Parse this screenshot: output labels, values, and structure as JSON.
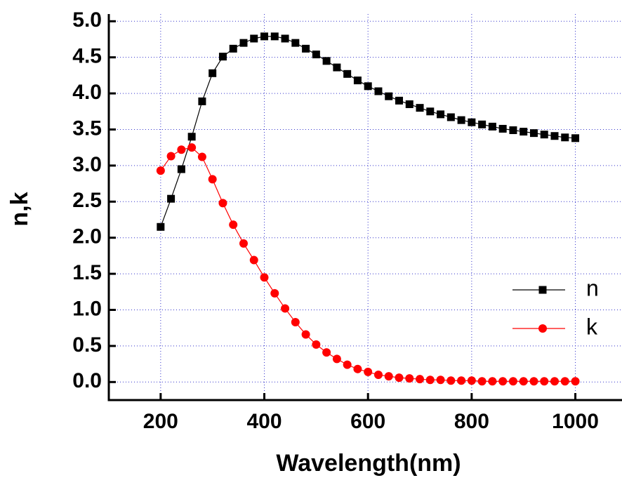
{
  "chart_data": {
    "type": "line",
    "x_label": "Wavelength(nm)",
    "y_label": "n,k",
    "x": [
      200,
      220,
      240,
      260,
      280,
      300,
      320,
      340,
      360,
      380,
      400,
      420,
      440,
      460,
      480,
      500,
      520,
      540,
      560,
      580,
      600,
      620,
      640,
      660,
      680,
      700,
      720,
      740,
      760,
      780,
      800,
      820,
      840,
      860,
      880,
      900,
      920,
      940,
      960,
      980,
      1000
    ],
    "series": [
      {
        "name": "n",
        "color": "#000000",
        "marker": "square",
        "values": [
          2.15,
          2.54,
          2.95,
          3.4,
          3.89,
          4.28,
          4.51,
          4.62,
          4.7,
          4.76,
          4.79,
          4.79,
          4.76,
          4.7,
          4.62,
          4.54,
          4.45,
          4.36,
          4.27,
          4.18,
          4.1,
          4.03,
          3.96,
          3.9,
          3.85,
          3.8,
          3.75,
          3.71,
          3.67,
          3.63,
          3.6,
          3.57,
          3.54,
          3.51,
          3.49,
          3.47,
          3.45,
          3.43,
          3.41,
          3.39,
          3.38
        ]
      },
      {
        "name": "k",
        "color": "#ff0000",
        "marker": "circle",
        "values": [
          2.93,
          3.13,
          3.22,
          3.25,
          3.12,
          2.81,
          2.48,
          2.18,
          1.92,
          1.69,
          1.45,
          1.23,
          1.02,
          0.83,
          0.66,
          0.52,
          0.41,
          0.32,
          0.24,
          0.18,
          0.14,
          0.1,
          0.08,
          0.06,
          0.05,
          0.04,
          0.03,
          0.03,
          0.02,
          0.02,
          0.02,
          0.01,
          0.01,
          0.01,
          0.01,
          0.01,
          0.01,
          0.01,
          0.01,
          0.01,
          0.01
        ]
      }
    ],
    "xlim": [
      100,
      1090
    ],
    "ylim": [
      -0.25,
      5.1
    ],
    "xticks": [
      200,
      400,
      600,
      800,
      1000
    ],
    "yticks": [
      {
        "value": 0,
        "label": "0.0"
      },
      {
        "value": 0.5,
        "label": "0.5"
      },
      {
        "value": 1,
        "label": "1.0"
      },
      {
        "value": 1.5,
        "label": "1.5"
      },
      {
        "value": 2,
        "label": "2.0"
      },
      {
        "value": 2.5,
        "label": "2.5"
      },
      {
        "value": 3,
        "label": "3.0"
      },
      {
        "value": 3.5,
        "label": "3.5"
      },
      {
        "value": 4,
        "label": "4.0"
      },
      {
        "value": 4.5,
        "label": "4.5"
      },
      {
        "value": 5,
        "label": "5.0"
      }
    ],
    "grid": true,
    "grid_color": "#3333cc",
    "legend": "right"
  }
}
